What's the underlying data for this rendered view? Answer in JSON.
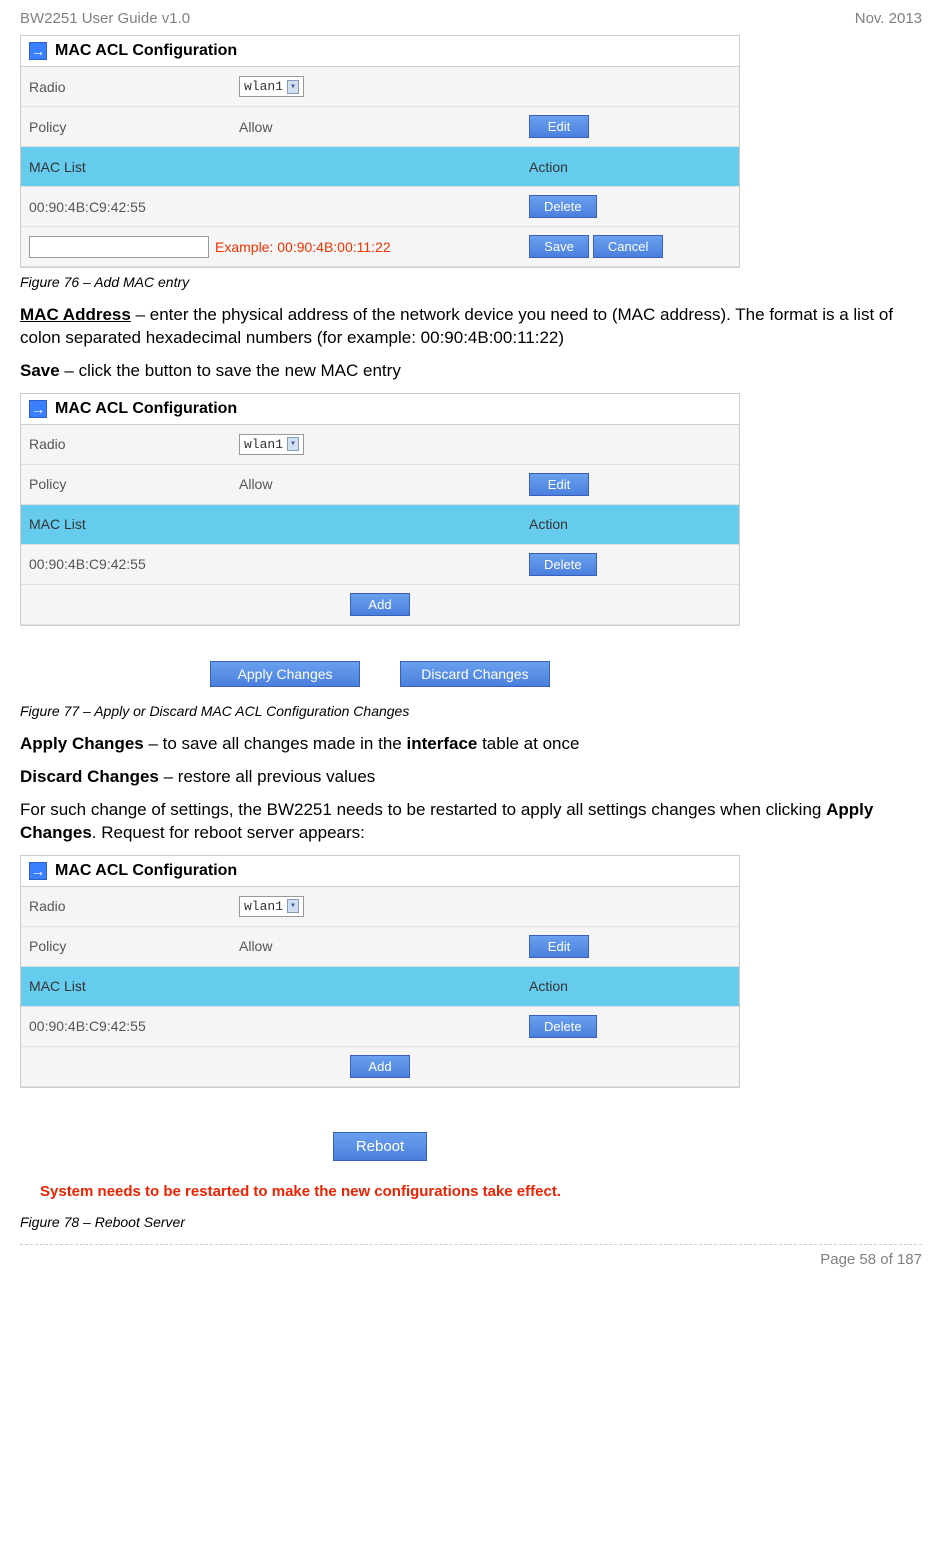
{
  "header": {
    "left": "BW2251 User Guide v1.0",
    "right": "Nov.  2013"
  },
  "panel": {
    "title": "MAC ACL Configuration",
    "icon_glyph": "→",
    "icon_bg": "#3a7fff",
    "rows": {
      "radio_label": "Radio",
      "radio_value": "wlan1",
      "policy_label": "Policy",
      "policy_value": "Allow",
      "list_header_left": "MAC List",
      "list_header_right": "Action",
      "mac_entry": "00:90:4B:C9:42:55"
    },
    "buttons": {
      "edit": "Edit",
      "delete": "Delete",
      "save": "Save",
      "cancel": "Cancel",
      "add": "Add",
      "apply": "Apply Changes",
      "discard": "Discard Changes",
      "reboot": "Reboot"
    },
    "example": "Example: 00:90:4B:00:11:22"
  },
  "captions": {
    "fig76": "Figure 76 – Add MAC entry",
    "fig77": "Figure 77 – Apply or Discard MAC ACL Configuration Changes",
    "fig78": "Figure 78 – Reboot Server"
  },
  "text": {
    "mac_address_label": "MAC Address",
    "mac_address_body": " – enter the physical address of the network device you need to (MAC address). The format is a list of colon separated hexadecimal numbers (for example: 00:90:4B:00:11:22)",
    "save_label": "Save",
    "save_body": " – click the button to save the new MAC entry",
    "apply_label": "Apply Changes",
    "apply_body": " – to save all changes made in the ",
    "apply_body_bold": "interface",
    "apply_body2": " table at once",
    "discard_label": "Discard Changes",
    "discard_body": " – restore all previous values",
    "restart1": "For such change of settings, the BW2251 needs to be restarted to apply all settings changes when clicking ",
    "restart_bold": "Apply Changes",
    "restart2": ". Request for reboot server appears:",
    "system_msg": "System needs to be restarted to make the new configurations take effect."
  },
  "footer": {
    "page": "Page 58 of 187"
  },
  "colors": {
    "header_row_bg": "#66ccee",
    "btn_bg": "#5a90e5",
    "example_color": "#ee3300",
    "system_msg_color": "#ee2200",
    "gray_text": "#808080"
  }
}
